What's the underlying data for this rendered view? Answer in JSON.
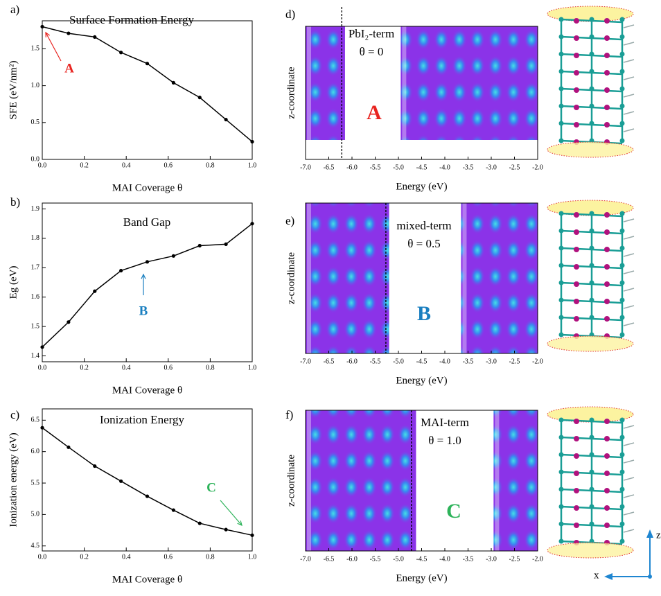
{
  "chart_data": [
    {
      "type": "line",
      "panel": "a)",
      "title": "Surface Formation Energy",
      "xlabel": "MAI Coverage θ",
      "ylabel": "SFE (eV/nm²)",
      "x": [
        0,
        0.125,
        0.25,
        0.375,
        0.5,
        0.625,
        0.75,
        0.875,
        1.0
      ],
      "values": [
        1.8,
        1.71,
        1.66,
        1.45,
        1.3,
        1.04,
        0.84,
        0.54,
        0.24
      ],
      "color": "#000000",
      "xlim": [
        0,
        1
      ],
      "xticks": [
        {
          "value": 0,
          "label": "0.0"
        },
        0.2,
        0.4,
        0.6,
        0.8,
        {
          "value": 1,
          "label": "1.0"
        }
      ],
      "ylim": [
        0,
        1.88
      ],
      "yticks": [
        {
          "value": 0,
          "label": "0.0"
        },
        0.5,
        {
          "value": 1,
          "label": "1.0"
        },
        1.5
      ],
      "annotation": "A",
      "annotation_color": "#e8231f"
    },
    {
      "type": "line",
      "panel": "b)",
      "title": "Band Gap",
      "xlabel": "MAI Coverage θ",
      "ylabel": "Eg (eV)",
      "x": [
        0,
        0.125,
        0.25,
        0.375,
        0.5,
        0.625,
        0.75,
        0.875,
        1.0
      ],
      "values": [
        1.43,
        1.515,
        1.62,
        1.69,
        1.72,
        1.74,
        1.775,
        1.78,
        1.85
      ],
      "color": "#000000",
      "xlim": [
        0,
        1
      ],
      "xticks": [
        {
          "value": 0,
          "label": "0.0"
        },
        0.2,
        0.4,
        0.6,
        0.8,
        {
          "value": 1,
          "label": "1.0"
        }
      ],
      "ylim": [
        1.38,
        1.92
      ],
      "yticks": [
        1.4,
        1.5,
        1.6,
        1.7,
        1.8,
        1.9
      ],
      "annotation": "B",
      "annotation_color": "#1a7fc0"
    },
    {
      "type": "line",
      "panel": "c)",
      "title": "Ionization Energy",
      "xlabel": "MAI Coverage θ",
      "ylabel": "Ionization energy (eV)",
      "x": [
        0,
        0.125,
        0.25,
        0.375,
        0.5,
        0.625,
        0.75,
        0.875,
        1.0
      ],
      "values": [
        6.38,
        6.07,
        5.77,
        5.53,
        5.29,
        5.07,
        4.86,
        4.76,
        4.67
      ],
      "color": "#000000",
      "xlim": [
        0,
        1
      ],
      "xticks": [
        {
          "value": 0,
          "label": "0.0"
        },
        0.2,
        0.4,
        0.6,
        0.8,
        {
          "value": 1,
          "label": "1.0"
        }
      ],
      "ylim": [
        4.42,
        6.68
      ],
      "yticks": [
        4.5,
        {
          "value": 5,
          "label": "5.0"
        },
        5.5,
        {
          "value": 6,
          "label": "6.0"
        },
        6.5
      ],
      "annotation": "C",
      "annotation_color": "#2db35a"
    },
    {
      "type": "contour",
      "panel": "d)",
      "xlabel": "Energy (eV)",
      "ylabel": "z-coordinate",
      "xlim": [
        -7.0,
        -2.0
      ],
      "xticks": [
        {
          "value": -7,
          "label": "-7.0"
        },
        -6.5,
        {
          "value": -6,
          "label": "-6.0"
        },
        -5.5,
        {
          "value": -5,
          "label": "-5.0"
        },
        -4.5,
        {
          "value": -4,
          "label": "-4.0"
        },
        -3.5,
        {
          "value": -3,
          "label": "-3.0"
        },
        -2.5,
        {
          "value": -2,
          "label": "-2.0"
        }
      ],
      "vline": -6.22,
      "bands": [
        [
          -7.0,
          -6.15
        ],
        [
          -4.95,
          -2.0
        ]
      ],
      "annotations": [
        "PbI₂-term",
        "θ = 0"
      ],
      "letter": "A",
      "letter_color": "#e8231f"
    },
    {
      "type": "contour",
      "panel": "e)",
      "xlabel": "Energy (eV)",
      "ylabel": "z-coordinate",
      "xlim": [
        -7.0,
        -2.0
      ],
      "xticks": [
        {
          "value": -7,
          "label": "-7.0"
        },
        -6.5,
        {
          "value": -6,
          "label": "-6.0"
        },
        -5.5,
        {
          "value": -5,
          "label": "-5.0"
        },
        -4.5,
        {
          "value": -4,
          "label": "-4.0"
        },
        -3.5,
        {
          "value": -3,
          "label": "-3.0"
        },
        -2.5,
        {
          "value": -2,
          "label": "-2.0"
        }
      ],
      "vline": -5.27,
      "bands": [
        [
          -7.0,
          -5.2
        ],
        [
          -3.65,
          -2.0
        ]
      ],
      "annotations": [
        "mixed-term",
        "θ = 0.5"
      ],
      "letter": "B",
      "letter_color": "#1a7fc0"
    },
    {
      "type": "contour",
      "panel": "f)",
      "xlabel": "Energy (eV)",
      "ylabel": "z-coordinate",
      "xlim": [
        -7.0,
        -2.0
      ],
      "xticks": [
        {
          "value": -7,
          "label": "-7.0"
        },
        -6.5,
        {
          "value": -6,
          "label": "-6.0"
        },
        -5.5,
        {
          "value": -5,
          "label": "-5.0"
        },
        -4.5,
        {
          "value": -4,
          "label": "-4.0"
        },
        -3.5,
        {
          "value": -3,
          "label": "-3.0"
        },
        -2.5,
        {
          "value": -2,
          "label": "-2.0"
        }
      ],
      "vline": -4.72,
      "bands": [
        [
          -7.0,
          -4.62
        ],
        [
          -2.95,
          -2.0
        ]
      ],
      "annotations": [
        "MAI-term",
        "θ = 1.0"
      ],
      "letter": "C",
      "letter_color": "#2db35a"
    }
  ],
  "structure_axes": {
    "z": "z",
    "x": "x"
  }
}
